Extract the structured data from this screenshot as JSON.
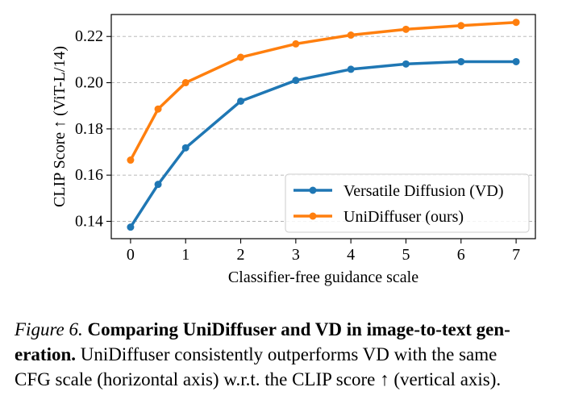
{
  "chart_data": {
    "type": "line",
    "xlabel": "Classifier-free guidance scale",
    "ylabel": "CLIP Score ↑ (ViT-L/14)",
    "xlim": [
      -0.35,
      7.35
    ],
    "ylim": [
      0.1325,
      0.2295
    ],
    "x_ticks": [
      0,
      1,
      2,
      3,
      4,
      5,
      6,
      7
    ],
    "x_tick_labels": [
      "0",
      "1",
      "2",
      "3",
      "4",
      "5",
      "6",
      "7"
    ],
    "y_ticks": [
      0.14,
      0.16,
      0.18,
      0.2,
      0.22
    ],
    "y_tick_labels": [
      "0.14",
      "0.16",
      "0.18",
      "0.20",
      "0.22"
    ],
    "grid": "horizontal dashed",
    "legend_position": "lower-right",
    "series": [
      {
        "name": "Versatile Diffusion (VD)",
        "color": "#1f77b4",
        "x": [
          0,
          0.5,
          1,
          2,
          3,
          4,
          5,
          6,
          7
        ],
        "y": [
          0.1375,
          0.156,
          0.1718,
          0.192,
          0.201,
          0.2058,
          0.2081,
          0.2091,
          0.2091
        ]
      },
      {
        "name": "UniDiffuser (ours)",
        "color": "#ff7f0e",
        "x": [
          0,
          0.5,
          1,
          2,
          3,
          4,
          5,
          6,
          7
        ],
        "y": [
          0.1665,
          0.1886,
          0.2,
          0.211,
          0.2168,
          0.2206,
          0.2231,
          0.2247,
          0.2261
        ]
      }
    ]
  },
  "caption": {
    "figure_label": "Figure 6.",
    "title_line1": "Comparing UniDiffuser and VD in image-to-text gen-",
    "title_line2": "eration.",
    "body_line2": " UniDiffuser consistently outperforms VD with the same",
    "body_line3": "CFG scale (horizontal axis) w.r.t. the CLIP score ↑ (vertical axis)."
  }
}
